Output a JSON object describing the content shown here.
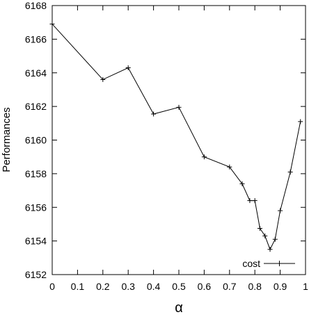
{
  "chart_data": {
    "type": "line",
    "xlabel": "α",
    "ylabel": "Performances",
    "xlim": [
      0,
      1
    ],
    "ylim": [
      6152,
      6168
    ],
    "xticks": [
      0,
      0.1,
      0.2,
      0.3,
      0.4,
      0.5,
      0.6,
      0.7,
      0.8,
      0.9,
      1
    ],
    "xtick_labels": [
      "0",
      "0.1",
      "0.2",
      "0.3",
      "0.4",
      "0.5",
      "0.6",
      "0.7",
      "0.8",
      "0.9",
      "1"
    ],
    "yticks": [
      6152,
      6154,
      6156,
      6158,
      6160,
      6162,
      6164,
      6166,
      6168
    ],
    "ytick_labels": [
      "6152",
      "6154",
      "6156",
      "6158",
      "6160",
      "6162",
      "6164",
      "6166",
      "6168"
    ],
    "grid": false,
    "legend_position": "bottom-right",
    "series": [
      {
        "name": "cost",
        "color": "#000000",
        "marker": "plus",
        "x": [
          0,
          0.2,
          0.3,
          0.4,
          0.5,
          0.6,
          0.7,
          0.75,
          0.78,
          0.8,
          0.82,
          0.84,
          0.86,
          0.88,
          0.9,
          0.94,
          0.98
        ],
        "y": [
          6166.9,
          6163.6,
          6164.3,
          6161.55,
          6161.95,
          6159.0,
          6158.4,
          6157.4,
          6156.4,
          6156.4,
          6154.75,
          6154.3,
          6153.5,
          6154.1,
          6155.8,
          6158.1,
          6161.1
        ]
      }
    ]
  }
}
